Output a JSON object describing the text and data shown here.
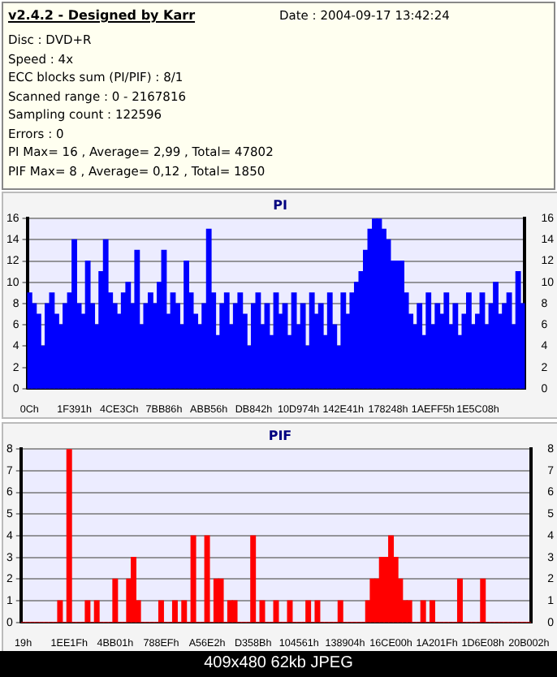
{
  "chart_data": [
    {
      "type": "other",
      "title": "v2.4.2 - Designed by Karr",
      "annotations": [
        "Date : 2004-09-17 13:42:24",
        "Disc : DVD+R",
        "Speed : 4x",
        "ECC blocks sum (PI/PIF) : 8/1",
        "Scanned range : 0 - 2167816",
        "Sampling count : 122596",
        "Errors : 0",
        "PI Max= 16 , Average= 2,99 , Total= 47802",
        "PIF Max= 8 , Average= 0,12 , Total= 1850"
      ]
    },
    {
      "type": "bar",
      "title": "PI",
      "color": "#0000ff",
      "grid": "y",
      "ylim": [
        0,
        16
      ],
      "yticks": [
        0,
        2,
        4,
        6,
        8,
        10,
        12,
        14,
        16
      ],
      "y2lim": [
        0,
        16
      ],
      "y2ticks": [
        0,
        2,
        4,
        6,
        8,
        10,
        12,
        14,
        16
      ],
      "categories": [
        "0Ch",
        null,
        null,
        null,
        null,
        null,
        null,
        null,
        null,
        null,
        "1F391h",
        null,
        null,
        null,
        null,
        null,
        null,
        null,
        null,
        null,
        "4CE3Ch",
        null,
        null,
        null,
        null,
        null,
        null,
        null,
        null,
        null,
        "7BB86h",
        null,
        null,
        null,
        null,
        null,
        null,
        null,
        null,
        null,
        "ABB56h",
        null,
        null,
        null,
        null,
        null,
        null,
        null,
        null,
        null,
        "DB842h",
        null,
        null,
        null,
        null,
        null,
        null,
        null,
        null,
        null,
        "10D974h",
        null,
        null,
        null,
        null,
        null,
        null,
        null,
        null,
        null,
        "142E41h",
        null,
        null,
        null,
        null,
        null,
        null,
        null,
        null,
        null,
        "178248h",
        null,
        null,
        null,
        null,
        null,
        null,
        null,
        null,
        null,
        "1AEFF5h",
        null,
        null,
        null,
        null,
        null,
        null,
        null,
        null,
        null,
        "1E5C08h",
        null,
        null,
        null,
        null,
        null,
        null,
        null,
        null,
        null,
        null
      ],
      "values": [
        9,
        8,
        7,
        4,
        8,
        9,
        7,
        6,
        8,
        9,
        14,
        8,
        7,
        12,
        8,
        6,
        11,
        14,
        9,
        8,
        7,
        9,
        10,
        8,
        13,
        6,
        8,
        9,
        8,
        10,
        13,
        7,
        9,
        8,
        6,
        12,
        9,
        7,
        6,
        8,
        15,
        9,
        5,
        8,
        9,
        6,
        8,
        9,
        7,
        4,
        8,
        9,
        6,
        8,
        5,
        9,
        7,
        8,
        5,
        9,
        6,
        8,
        4,
        9,
        7,
        8,
        5,
        9,
        6,
        4,
        9,
        7,
        9,
        10,
        11,
        13,
        15,
        16,
        16,
        15,
        14,
        12,
        12,
        12,
        9,
        7,
        6,
        8,
        5,
        9,
        6,
        8,
        7,
        9,
        6,
        8,
        5,
        7,
        9,
        6,
        7,
        9,
        6,
        8,
        10,
        7,
        8,
        9,
        6,
        11,
        8
      ]
    },
    {
      "type": "bar",
      "title": "PIF",
      "color": "#ff0000",
      "grid": "y",
      "ylim": [
        0,
        8
      ],
      "yticks": [
        0,
        1,
        2,
        3,
        4,
        5,
        6,
        7,
        8
      ],
      "y2lim": [
        0,
        8
      ],
      "y2ticks": [
        0,
        1,
        2,
        3,
        4,
        5,
        6,
        7,
        8
      ],
      "categories": [
        "19h",
        null,
        null,
        null,
        null,
        null,
        null,
        null,
        null,
        null,
        "1EE1Fh",
        null,
        null,
        null,
        null,
        null,
        null,
        null,
        null,
        null,
        "4BB01h",
        null,
        null,
        null,
        null,
        null,
        null,
        null,
        null,
        null,
        "788EFh",
        null,
        null,
        null,
        null,
        null,
        null,
        null,
        null,
        null,
        "A56E2h",
        null,
        null,
        null,
        null,
        null,
        null,
        null,
        null,
        null,
        "D358Bh",
        null,
        null,
        null,
        null,
        null,
        null,
        null,
        null,
        null,
        "104561h",
        null,
        null,
        null,
        null,
        null,
        null,
        null,
        null,
        null,
        "138904h",
        null,
        null,
        null,
        null,
        null,
        null,
        null,
        null,
        null,
        "16CE00h",
        null,
        null,
        null,
        null,
        null,
        null,
        null,
        null,
        null,
        "1A201Fh",
        null,
        null,
        null,
        null,
        null,
        null,
        null,
        null,
        null,
        "1D6E08h",
        null,
        null,
        null,
        null,
        null,
        null,
        null,
        null,
        null,
        "20B002h"
      ],
      "values": [
        0,
        0,
        0,
        0,
        0,
        0,
        0,
        0,
        1,
        0,
        8,
        0,
        0,
        0,
        1,
        0,
        1,
        0,
        0,
        0,
        2,
        0,
        0,
        2,
        3,
        1,
        0,
        0,
        0,
        0,
        1,
        0,
        0,
        1,
        0,
        1,
        0,
        4,
        0,
        0,
        4,
        0,
        2,
        2,
        0,
        1,
        1,
        0,
        0,
        0,
        4,
        0,
        1,
        0,
        0,
        1,
        0,
        0,
        1,
        0,
        0,
        0,
        1,
        0,
        1,
        0,
        0,
        0,
        0,
        1,
        0,
        0,
        0,
        0,
        0,
        1,
        2,
        2,
        3,
        3,
        4,
        3,
        2,
        1,
        1,
        0,
        0,
        1,
        0,
        1,
        0,
        0,
        0,
        0,
        0,
        2,
        0,
        0,
        0,
        0,
        2,
        0,
        0,
        0,
        0,
        0,
        0,
        0,
        0,
        0,
        0
      ],
      "annotations": [
        "409x480 62kb JPEG"
      ]
    }
  ]
}
